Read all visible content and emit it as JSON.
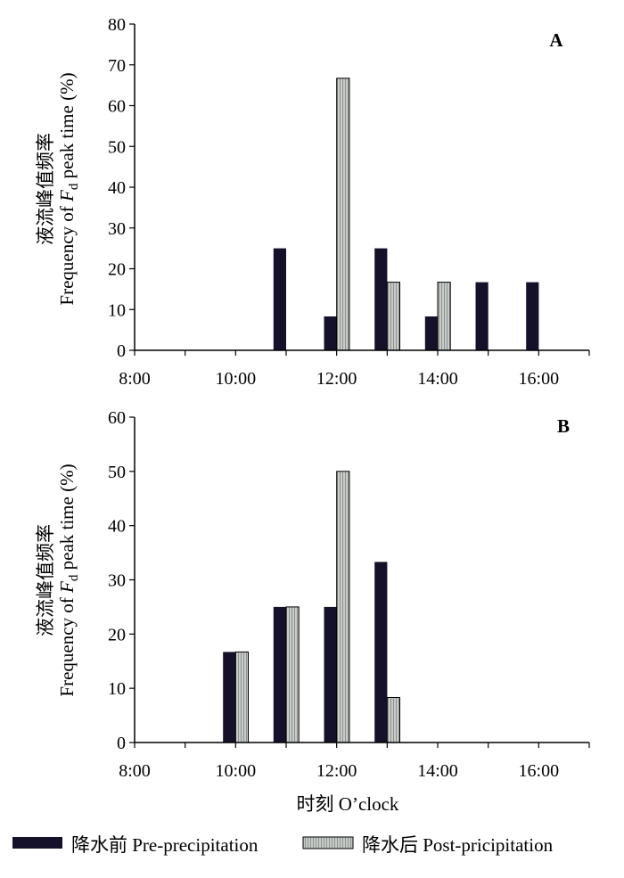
{
  "chart_data": [
    {
      "type": "bar",
      "panel_label": "A",
      "ylabel_cn": "液流峰值频率",
      "ylabel_en_prefix": "Frequency of ",
      "ylabel_en_var": "F",
      "ylabel_en_sub": "d",
      "ylabel_en_suffix": " peak time (%)",
      "ylim": [
        0,
        80
      ],
      "yticks": [
        0,
        10,
        20,
        30,
        40,
        50,
        60,
        70,
        80
      ],
      "xlim": [
        8,
        17
      ],
      "xticks": [
        8,
        10,
        12,
        14,
        16
      ],
      "xticklabels": [
        "8:00",
        "10:00",
        "12:00",
        "14:00",
        "16:00"
      ],
      "x": [
        11,
        12,
        13,
        14,
        15,
        16
      ],
      "series": [
        {
          "name": "降水前 Pre-precipitation",
          "values": [
            25,
            8.3,
            25,
            8.3,
            16.7,
            16.7
          ]
        },
        {
          "name": "降水后 Post-pricipitation",
          "values": [
            0,
            66.7,
            16.7,
            16.7,
            0,
            0
          ]
        }
      ]
    },
    {
      "type": "bar",
      "panel_label": "B",
      "ylabel_cn": "液流峰值频率",
      "ylabel_en_prefix": "Frequency of ",
      "ylabel_en_var": "F",
      "ylabel_en_sub": "d",
      "ylabel_en_suffix": " peak time (%)",
      "xlabel": "时刻 O’clock",
      "ylim": [
        0,
        60
      ],
      "yticks": [
        0,
        10,
        20,
        30,
        40,
        50,
        60
      ],
      "xlim": [
        8,
        17
      ],
      "xticks": [
        8,
        10,
        12,
        14,
        16
      ],
      "xticklabels": [
        "8:00",
        "10:00",
        "12:00",
        "14:00",
        "16:00"
      ],
      "x": [
        10,
        11,
        12,
        13
      ],
      "series": [
        {
          "name": "降水前 Pre-precipitation",
          "values": [
            16.7,
            25,
            25,
            33.3
          ]
        },
        {
          "name": "降水后 Post-pricipitation",
          "values": [
            16.7,
            25,
            50,
            8.3
          ]
        }
      ]
    }
  ],
  "legend": {
    "items": [
      {
        "label": "降水前 Pre-precipitation",
        "color": "#15112a"
      },
      {
        "label": "降水后 Post-pricipitation",
        "color": "#c8ccc8"
      }
    ]
  },
  "colors": {
    "pre": "#15112a",
    "post": "#c8ccc8",
    "post_stripe": "#8e928e"
  }
}
